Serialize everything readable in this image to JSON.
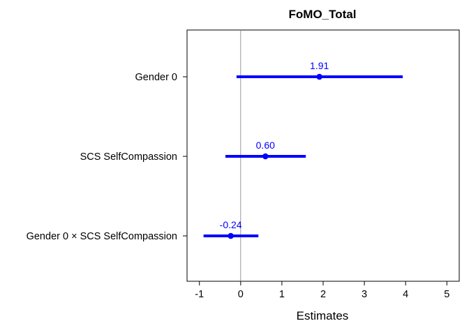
{
  "chart_data": {
    "type": "scatter",
    "subtype": "forest-plot",
    "title": "FoMO_Total",
    "xlabel": "Estimates",
    "ylabel": "",
    "xlim": [
      -1.3,
      5.3
    ],
    "xticks": [
      -1,
      0,
      1,
      2,
      3,
      4,
      5
    ],
    "xtick_labels": [
      "-1",
      "0",
      "1",
      "2",
      "3",
      "4",
      "5"
    ],
    "reference_line": 0,
    "grid": false,
    "legend": "none",
    "color": "#0000ff",
    "terms": [
      {
        "label": "Gender 0",
        "estimate": 1.91,
        "ci_low": -0.1,
        "ci_high": 3.93,
        "value_label": "1.91"
      },
      {
        "label": "SCS SelfCompassion",
        "estimate": 0.6,
        "ci_low": -0.37,
        "ci_high": 1.58,
        "value_label": "0.60"
      },
      {
        "label": "Gender 0 × SCS SelfCompassion",
        "estimate": -0.24,
        "ci_low": -0.9,
        "ci_high": 0.43,
        "value_label": "-0.24"
      }
    ]
  }
}
